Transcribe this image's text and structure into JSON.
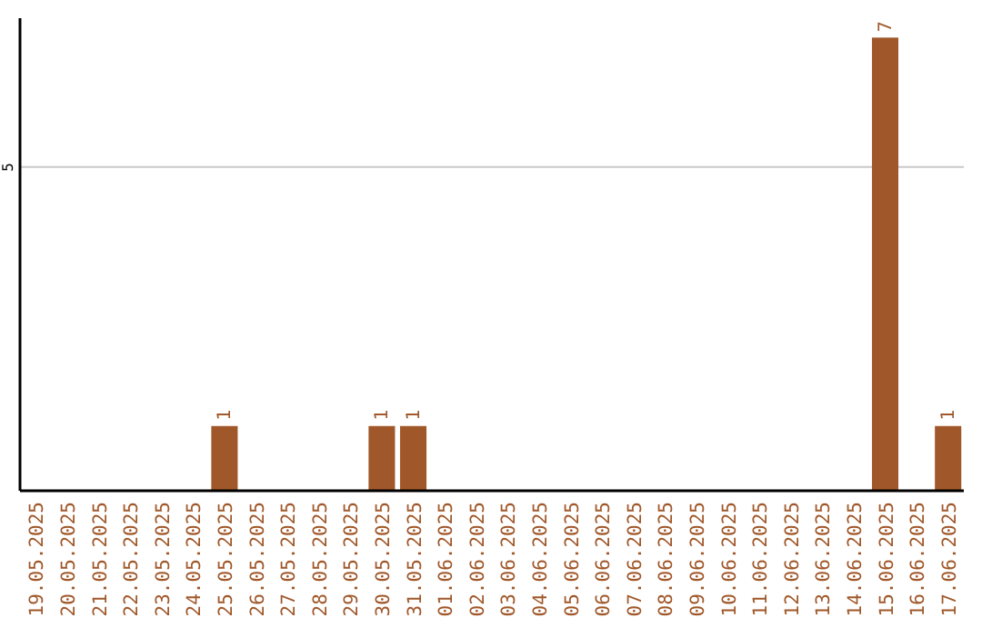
{
  "chart_data": {
    "type": "bar",
    "categories": [
      "19.05.2025",
      "20.05.2025",
      "21.05.2025",
      "22.05.2025",
      "23.05.2025",
      "24.05.2025",
      "25.05.2025",
      "26.05.2025",
      "27.05.2025",
      "28.05.2025",
      "29.05.2025",
      "30.05.2025",
      "31.05.2025",
      "01.06.2025",
      "02.06.2025",
      "03.06.2025",
      "04.06.2025",
      "05.06.2025",
      "06.06.2025",
      "07.06.2025",
      "08.06.2025",
      "09.06.2025",
      "10.06.2025",
      "11.06.2025",
      "12.06.2025",
      "13.06.2025",
      "14.06.2025",
      "15.06.2025",
      "16.06.2025",
      "17.06.2025"
    ],
    "values": [
      0,
      0,
      0,
      0,
      0,
      0,
      1,
      0,
      0,
      0,
      0,
      1,
      1,
      0,
      0,
      0,
      0,
      0,
      0,
      0,
      0,
      0,
      0,
      0,
      0,
      0,
      0,
      7,
      0,
      1
    ],
    "value_labels": [
      null,
      null,
      null,
      null,
      null,
      null,
      "1",
      null,
      null,
      null,
      null,
      "1",
      "1",
      null,
      null,
      null,
      null,
      null,
      null,
      null,
      null,
      null,
      null,
      null,
      null,
      null,
      null,
      "7",
      null,
      "1"
    ],
    "color": "#a0582a",
    "ylim": [
      0,
      7.3
    ],
    "yticks": [
      5
    ],
    "grid": "y"
  }
}
